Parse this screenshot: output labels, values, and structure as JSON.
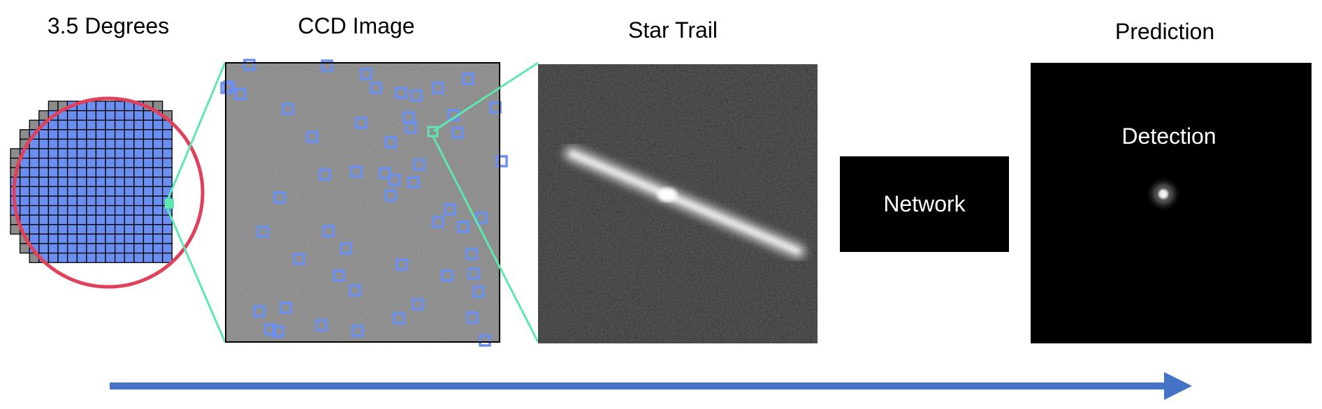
{
  "labels": {
    "focal_plane": "3.5 Degrees",
    "ccd": "CCD Image",
    "star_trail": "Star Trail",
    "network": "Network",
    "prediction": "Prediction",
    "detection": "Detection"
  },
  "colors": {
    "ccd_tile": "#6a8ff0",
    "ccd_tile_outer": "#8c8c8c",
    "circle": "#e0405a",
    "highlight": "#5de8b0",
    "detection_box": "#6a8ff0",
    "arrow": "#4472c4",
    "network_box": "#000000"
  }
}
